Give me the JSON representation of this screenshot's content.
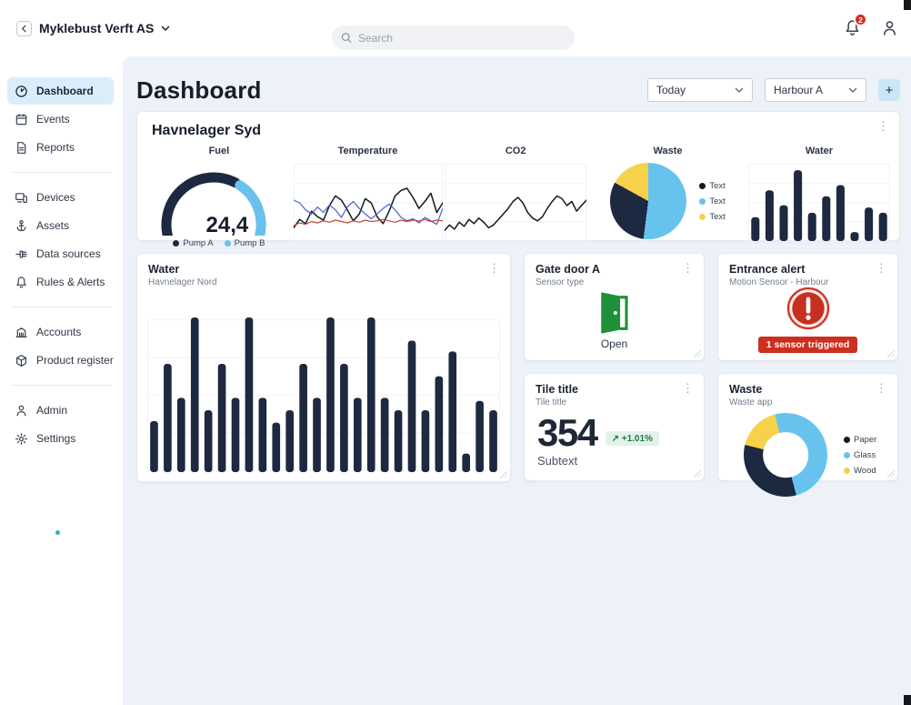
{
  "ui": {
    "kebab": "⋮"
  },
  "topbar": {
    "org": "Myklebust Verft AS",
    "search_placeholder": "Search",
    "notifications": "2"
  },
  "sidebar": {
    "groups": [
      {
        "items": [
          {
            "label": "Dashboard",
            "active": true
          },
          {
            "label": "Events"
          },
          {
            "label": "Reports"
          }
        ]
      },
      {
        "items": [
          {
            "label": "Devices"
          },
          {
            "label": "Assets"
          },
          {
            "label": "Data sources"
          },
          {
            "label": "Rules & Alerts"
          }
        ]
      },
      {
        "items": [
          {
            "label": "Accounts"
          },
          {
            "label": "Product register"
          }
        ]
      },
      {
        "items": [
          {
            "label": "Admin"
          },
          {
            "label": "Settings"
          }
        ]
      }
    ]
  },
  "header": {
    "title": "Dashboard",
    "period_filter": "Today",
    "location_filter": "Harbour A",
    "add_label": "+"
  },
  "overview": {
    "title": "Havnelager Syd"
  },
  "cards": {
    "water": {
      "title": "Water",
      "subtitle": "Havnelager Nord"
    },
    "gate_door": {
      "title": "Gate door A",
      "subtitle": "Sensor type",
      "status_label": "Open"
    },
    "entrance_alert": {
      "title": "Entrance alert",
      "subtitle": "Motion Sensor - Harbour",
      "alert_badge": "1 sensor triggered"
    },
    "tile": {
      "title": "Tile title",
      "subtitle": "Tile title",
      "value": "354",
      "trend_arrow": "↗",
      "trend_label": "+1.01%",
      "subtext": "Subtext"
    },
    "waste": {
      "title": "Waste",
      "subtitle": "Waste app"
    }
  },
  "chart_data": {
    "fuel": {
      "type": "gauge",
      "title": "Fuel",
      "value_display": "24,4",
      "fraction": 0.62,
      "colors": [
        "#1d2940",
        "#6ac1ed"
      ],
      "legend": [
        {
          "label": "Pump A",
          "color": "#1d2940"
        },
        {
          "label": "Pump B",
          "color": "#6ac1ed"
        }
      ]
    },
    "temperature": {
      "type": "line",
      "title": "Temperature",
      "series": [
        {
          "name": "series-black",
          "color": "#16181d",
          "width": 1.5,
          "values": [
            14,
            26,
            20,
            38,
            30,
            25,
            46,
            60,
            54,
            40,
            24,
            34,
            56,
            50,
            30,
            20,
            38,
            60,
            68,
            71,
            58,
            42,
            52,
            64,
            36,
            50
          ]
        },
        {
          "name": "series-blue",
          "color": "#4a5fd0",
          "width": 1.2,
          "values": [
            54,
            50,
            40,
            34,
            44,
            36,
            47,
            40,
            29,
            44,
            52,
            42,
            34,
            27,
            34,
            42,
            48,
            40,
            29,
            24,
            27,
            21,
            29,
            24,
            19,
            42
          ]
        },
        {
          "name": "series-red",
          "color": "#c24a33",
          "width": 1.2,
          "values": [
            17,
            21,
            19,
            23,
            21,
            24,
            22,
            25,
            23,
            21,
            24,
            22,
            25,
            23,
            24,
            26,
            24,
            22,
            25,
            23,
            25,
            24,
            26,
            23,
            25,
            24
          ]
        }
      ]
    },
    "co2": {
      "type": "line",
      "title": "CO2",
      "series": [
        {
          "name": "co2",
          "color": "#16181d",
          "width": 1.5,
          "values": [
            10,
            18,
            12,
            22,
            16,
            26,
            20,
            28,
            22,
            14,
            18,
            26,
            34,
            42,
            52,
            58,
            50,
            36,
            28,
            24,
            30,
            42,
            52,
            60,
            56,
            46,
            52,
            38,
            46,
            54
          ]
        }
      ]
    },
    "waste_pie": {
      "type": "pie",
      "title": "Waste",
      "from_deg": 0,
      "slices": [
        {
          "label": "Text",
          "value": 52,
          "color": "#67c3ee"
        },
        {
          "label": "Text",
          "value": 31,
          "color": "#1d2940"
        },
        {
          "label": "Text",
          "value": 17,
          "color": "#f7d14b"
        }
      ],
      "legend": [
        {
          "label": "Text",
          "color": "#16181d"
        },
        {
          "label": "Text",
          "color": "#67c3ee"
        },
        {
          "label": "Text",
          "color": "#f7d14b"
        }
      ]
    },
    "water_mini": {
      "type": "bar",
      "title": "Water",
      "color": "#1d2940",
      "values": [
        32,
        68,
        48,
        95,
        38,
        60,
        75,
        12,
        45,
        38
      ]
    },
    "water_main": {
      "type": "bar",
      "color": "#1d2940",
      "values": [
        33,
        70,
        48,
        100,
        40,
        70,
        48,
        100,
        48,
        32,
        40,
        70,
        48,
        100,
        70,
        48,
        100,
        48,
        40,
        85,
        40,
        62,
        78,
        12,
        46,
        40
      ]
    },
    "waste_donut": {
      "type": "donut",
      "from_deg": -15,
      "slices": [
        {
          "label": "Glass",
          "value": 50,
          "color": "#67c3ee"
        },
        {
          "label": "Paper",
          "value": 33,
          "color": "#1d2940"
        },
        {
          "label": "Wood",
          "value": 17,
          "color": "#f7d14b"
        }
      ],
      "legend": [
        {
          "label": "Paper",
          "color": "#16181d"
        },
        {
          "label": "Glass",
          "color": "#67c3ee"
        },
        {
          "label": "Wood",
          "color": "#f7d14b"
        }
      ]
    }
  }
}
